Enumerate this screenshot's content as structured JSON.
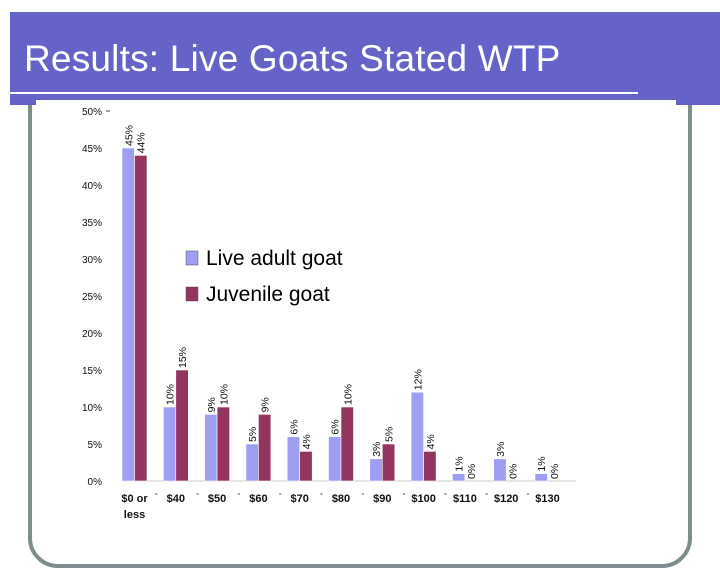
{
  "slide": {
    "title": "Results: Live Goats Stated WTP"
  },
  "colors": {
    "header_bg": "#6563c8",
    "frame": "#7f8c8d",
    "series_adult": "#9e9ef2",
    "series_juvenile": "#94355f"
  },
  "chart_data": {
    "type": "bar",
    "title": "",
    "xlabel": "",
    "ylabel": "",
    "ylim": [
      0,
      50
    ],
    "yticks": [
      "0%",
      "5%",
      "10%",
      "15%",
      "20%",
      "25%",
      "30%",
      "35%",
      "40%",
      "45%",
      "50%"
    ],
    "categories": [
      "$0 or less",
      "$40",
      "$50",
      "$60",
      "$70",
      "$80",
      "$90",
      "$100",
      "$110",
      "$120",
      "$130"
    ],
    "series": [
      {
        "name": "Live adult goat",
        "values": [
          45,
          10,
          9,
          5,
          6,
          6,
          3,
          12,
          1,
          3,
          1
        ],
        "labels": [
          "45%",
          "10%",
          "9%",
          "5%",
          "6%",
          "6%",
          "3%",
          "12%",
          "1%",
          "3%",
          "1%"
        ]
      },
      {
        "name": "Juvenile goat",
        "values": [
          44,
          15,
          10,
          9,
          4,
          10,
          5,
          4,
          0,
          0,
          0
        ],
        "labels": [
          "44%",
          "15%",
          "10%",
          "9%",
          "4%",
          "10%",
          "5%",
          "4%",
          "0%",
          "0%",
          "0%"
        ]
      }
    ],
    "legend": {
      "position": "top-center"
    }
  }
}
